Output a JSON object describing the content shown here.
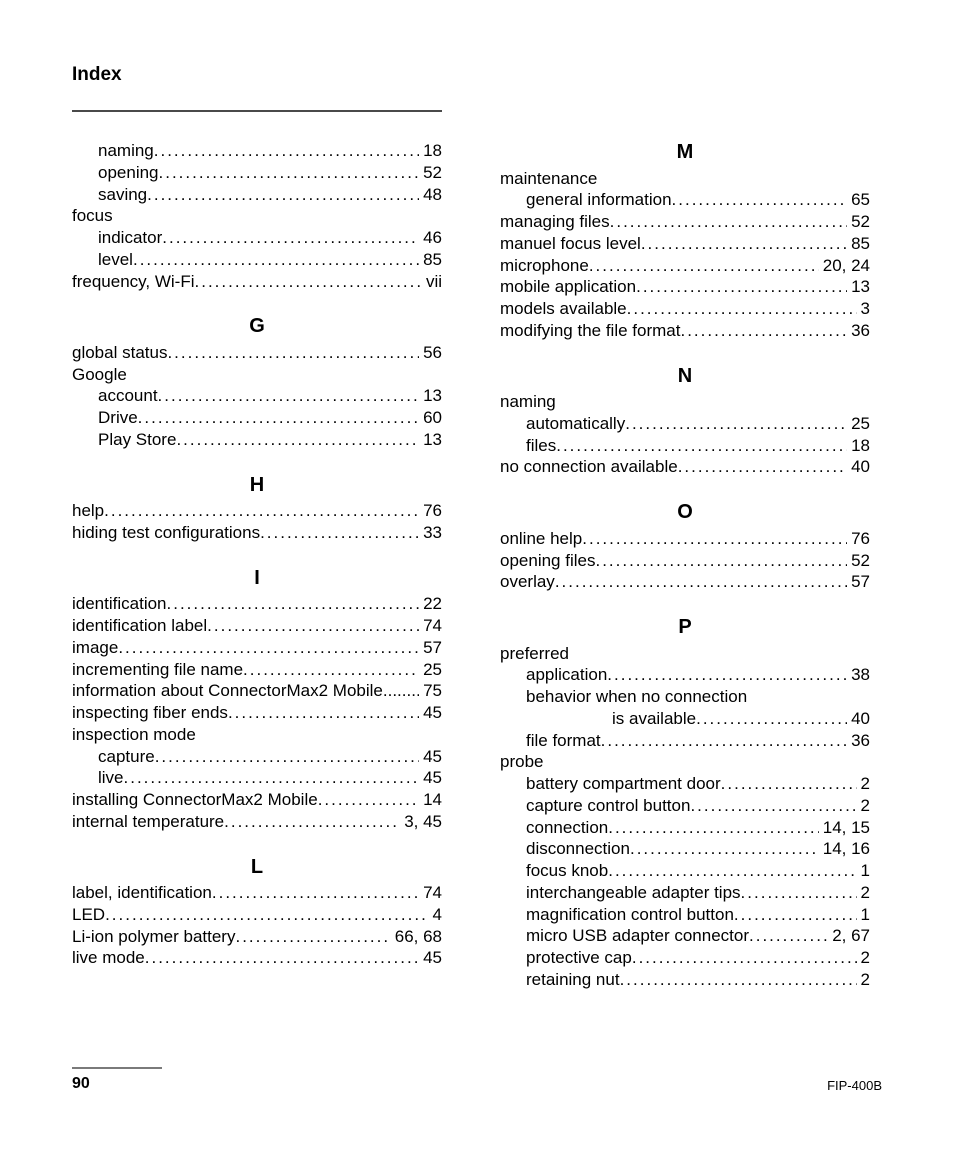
{
  "header": {
    "title": "Index"
  },
  "footer": {
    "page_number": "90",
    "doc_id": "FIP-400B"
  },
  "left": {
    "pre": [
      {
        "term": "naming",
        "page": "18",
        "indent": 1
      },
      {
        "term": "opening",
        "page": "52",
        "indent": 1
      },
      {
        "term": "saving",
        "page": "48",
        "indent": 1
      },
      {
        "term": "focus",
        "page": "",
        "indent": 0,
        "nodots": true
      },
      {
        "term": "indicator",
        "page": "46",
        "indent": 1
      },
      {
        "term": "level",
        "page": "85",
        "indent": 1
      },
      {
        "term": "frequency, Wi-Fi",
        "page": "vii",
        "indent": 0
      }
    ],
    "sections": [
      {
        "letter": "G",
        "items": [
          {
            "term": "global status",
            "page": "56",
            "indent": 0
          },
          {
            "term": "Google",
            "page": "",
            "indent": 0,
            "nodots": true
          },
          {
            "term": "account",
            "page": "13",
            "indent": 1
          },
          {
            "term": "Drive",
            "page": "60",
            "indent": 1
          },
          {
            "term": "Play Store",
            "page": "13",
            "indent": 1
          }
        ]
      },
      {
        "letter": "H",
        "items": [
          {
            "term": "help",
            "page": "76",
            "indent": 0
          },
          {
            "term": "hiding test configurations",
            "page": "33",
            "indent": 0
          }
        ]
      },
      {
        "letter": "I",
        "items": [
          {
            "term": "identification",
            "page": "22",
            "indent": 0
          },
          {
            "term": "identification label",
            "page": "74",
            "indent": 0
          },
          {
            "term": "image",
            "page": "57",
            "indent": 0
          },
          {
            "term": "incrementing file name",
            "page": "25",
            "indent": 0
          },
          {
            "term": "information about ConnectorMax2 Mobile",
            "page": "75",
            "indent": 0,
            "tight": true
          },
          {
            "term": "inspecting fiber ends",
            "page": "45",
            "indent": 0
          },
          {
            "term": "inspection mode",
            "page": "",
            "indent": 0,
            "nodots": true
          },
          {
            "term": "capture",
            "page": "45",
            "indent": 1
          },
          {
            "term": "live",
            "page": "45",
            "indent": 1
          },
          {
            "term": "installing ConnectorMax2 Mobile",
            "page": "14",
            "indent": 0
          },
          {
            "term": "internal temperature",
            "page": "3, 45",
            "indent": 0
          }
        ]
      },
      {
        "letter": "L",
        "items": [
          {
            "term": "label, identification",
            "page": "74",
            "indent": 0
          },
          {
            "term": "LED",
            "page": "4",
            "indent": 0
          },
          {
            "term": "Li-ion polymer battery",
            "page": "66, 68",
            "indent": 0
          },
          {
            "term": "live mode",
            "page": "45",
            "indent": 0
          }
        ]
      }
    ]
  },
  "right": {
    "sections": [
      {
        "letter": "M",
        "items": [
          {
            "term": "maintenance",
            "page": "",
            "indent": 0,
            "nodots": true
          },
          {
            "term": "general information",
            "page": "65",
            "indent": 1
          },
          {
            "term": "managing files",
            "page": "52",
            "indent": 0
          },
          {
            "term": "manuel focus level",
            "page": "85",
            "indent": 0
          },
          {
            "term": "microphone",
            "page": "20, 24",
            "indent": 0
          },
          {
            "term": "mobile application",
            "page": "13",
            "indent": 0
          },
          {
            "term": "models available",
            "page": "3",
            "indent": 0
          },
          {
            "term": "modifying the file format",
            "page": "36",
            "indent": 0
          }
        ]
      },
      {
        "letter": "N",
        "items": [
          {
            "term": "naming",
            "page": "",
            "indent": 0,
            "nodots": true
          },
          {
            "term": "automatically",
            "page": "25",
            "indent": 1
          },
          {
            "term": "files",
            "page": "18",
            "indent": 1
          },
          {
            "term": "no connection available",
            "page": "40",
            "indent": 0
          }
        ]
      },
      {
        "letter": "O",
        "items": [
          {
            "term": "online help",
            "page": "76",
            "indent": 0
          },
          {
            "term": "opening files",
            "page": "52",
            "indent": 0
          },
          {
            "term": "overlay",
            "page": "57",
            "indent": 0
          }
        ]
      },
      {
        "letter": "P",
        "items": [
          {
            "term": "preferred",
            "page": "",
            "indent": 0,
            "nodots": true
          },
          {
            "term": "application",
            "page": "38",
            "indent": 1
          },
          {
            "term": "behavior when no connection",
            "page": "",
            "indent": 1,
            "nodots": true
          },
          {
            "term": "is available",
            "page": "40",
            "indent": 2
          },
          {
            "term": "file format",
            "page": "36",
            "indent": 1
          },
          {
            "term": "probe",
            "page": "",
            "indent": 0,
            "nodots": true
          },
          {
            "term": "battery compartment door",
            "page": "2",
            "indent": 1
          },
          {
            "term": "capture control button",
            "page": "2",
            "indent": 1
          },
          {
            "term": "connection",
            "page": "14, 15",
            "indent": 1
          },
          {
            "term": "disconnection",
            "page": "14, 16",
            "indent": 1
          },
          {
            "term": "focus knob",
            "page": "1",
            "indent": 1
          },
          {
            "term": "interchangeable adapter tips",
            "page": "2",
            "indent": 1
          },
          {
            "term": "magnification control button",
            "page": "1",
            "indent": 1
          },
          {
            "term": "micro USB adapter connector",
            "page": "2, 67",
            "indent": 1
          },
          {
            "term": "protective cap",
            "page": "2",
            "indent": 1
          },
          {
            "term": "retaining nut",
            "page": "2",
            "indent": 1
          }
        ]
      }
    ]
  }
}
